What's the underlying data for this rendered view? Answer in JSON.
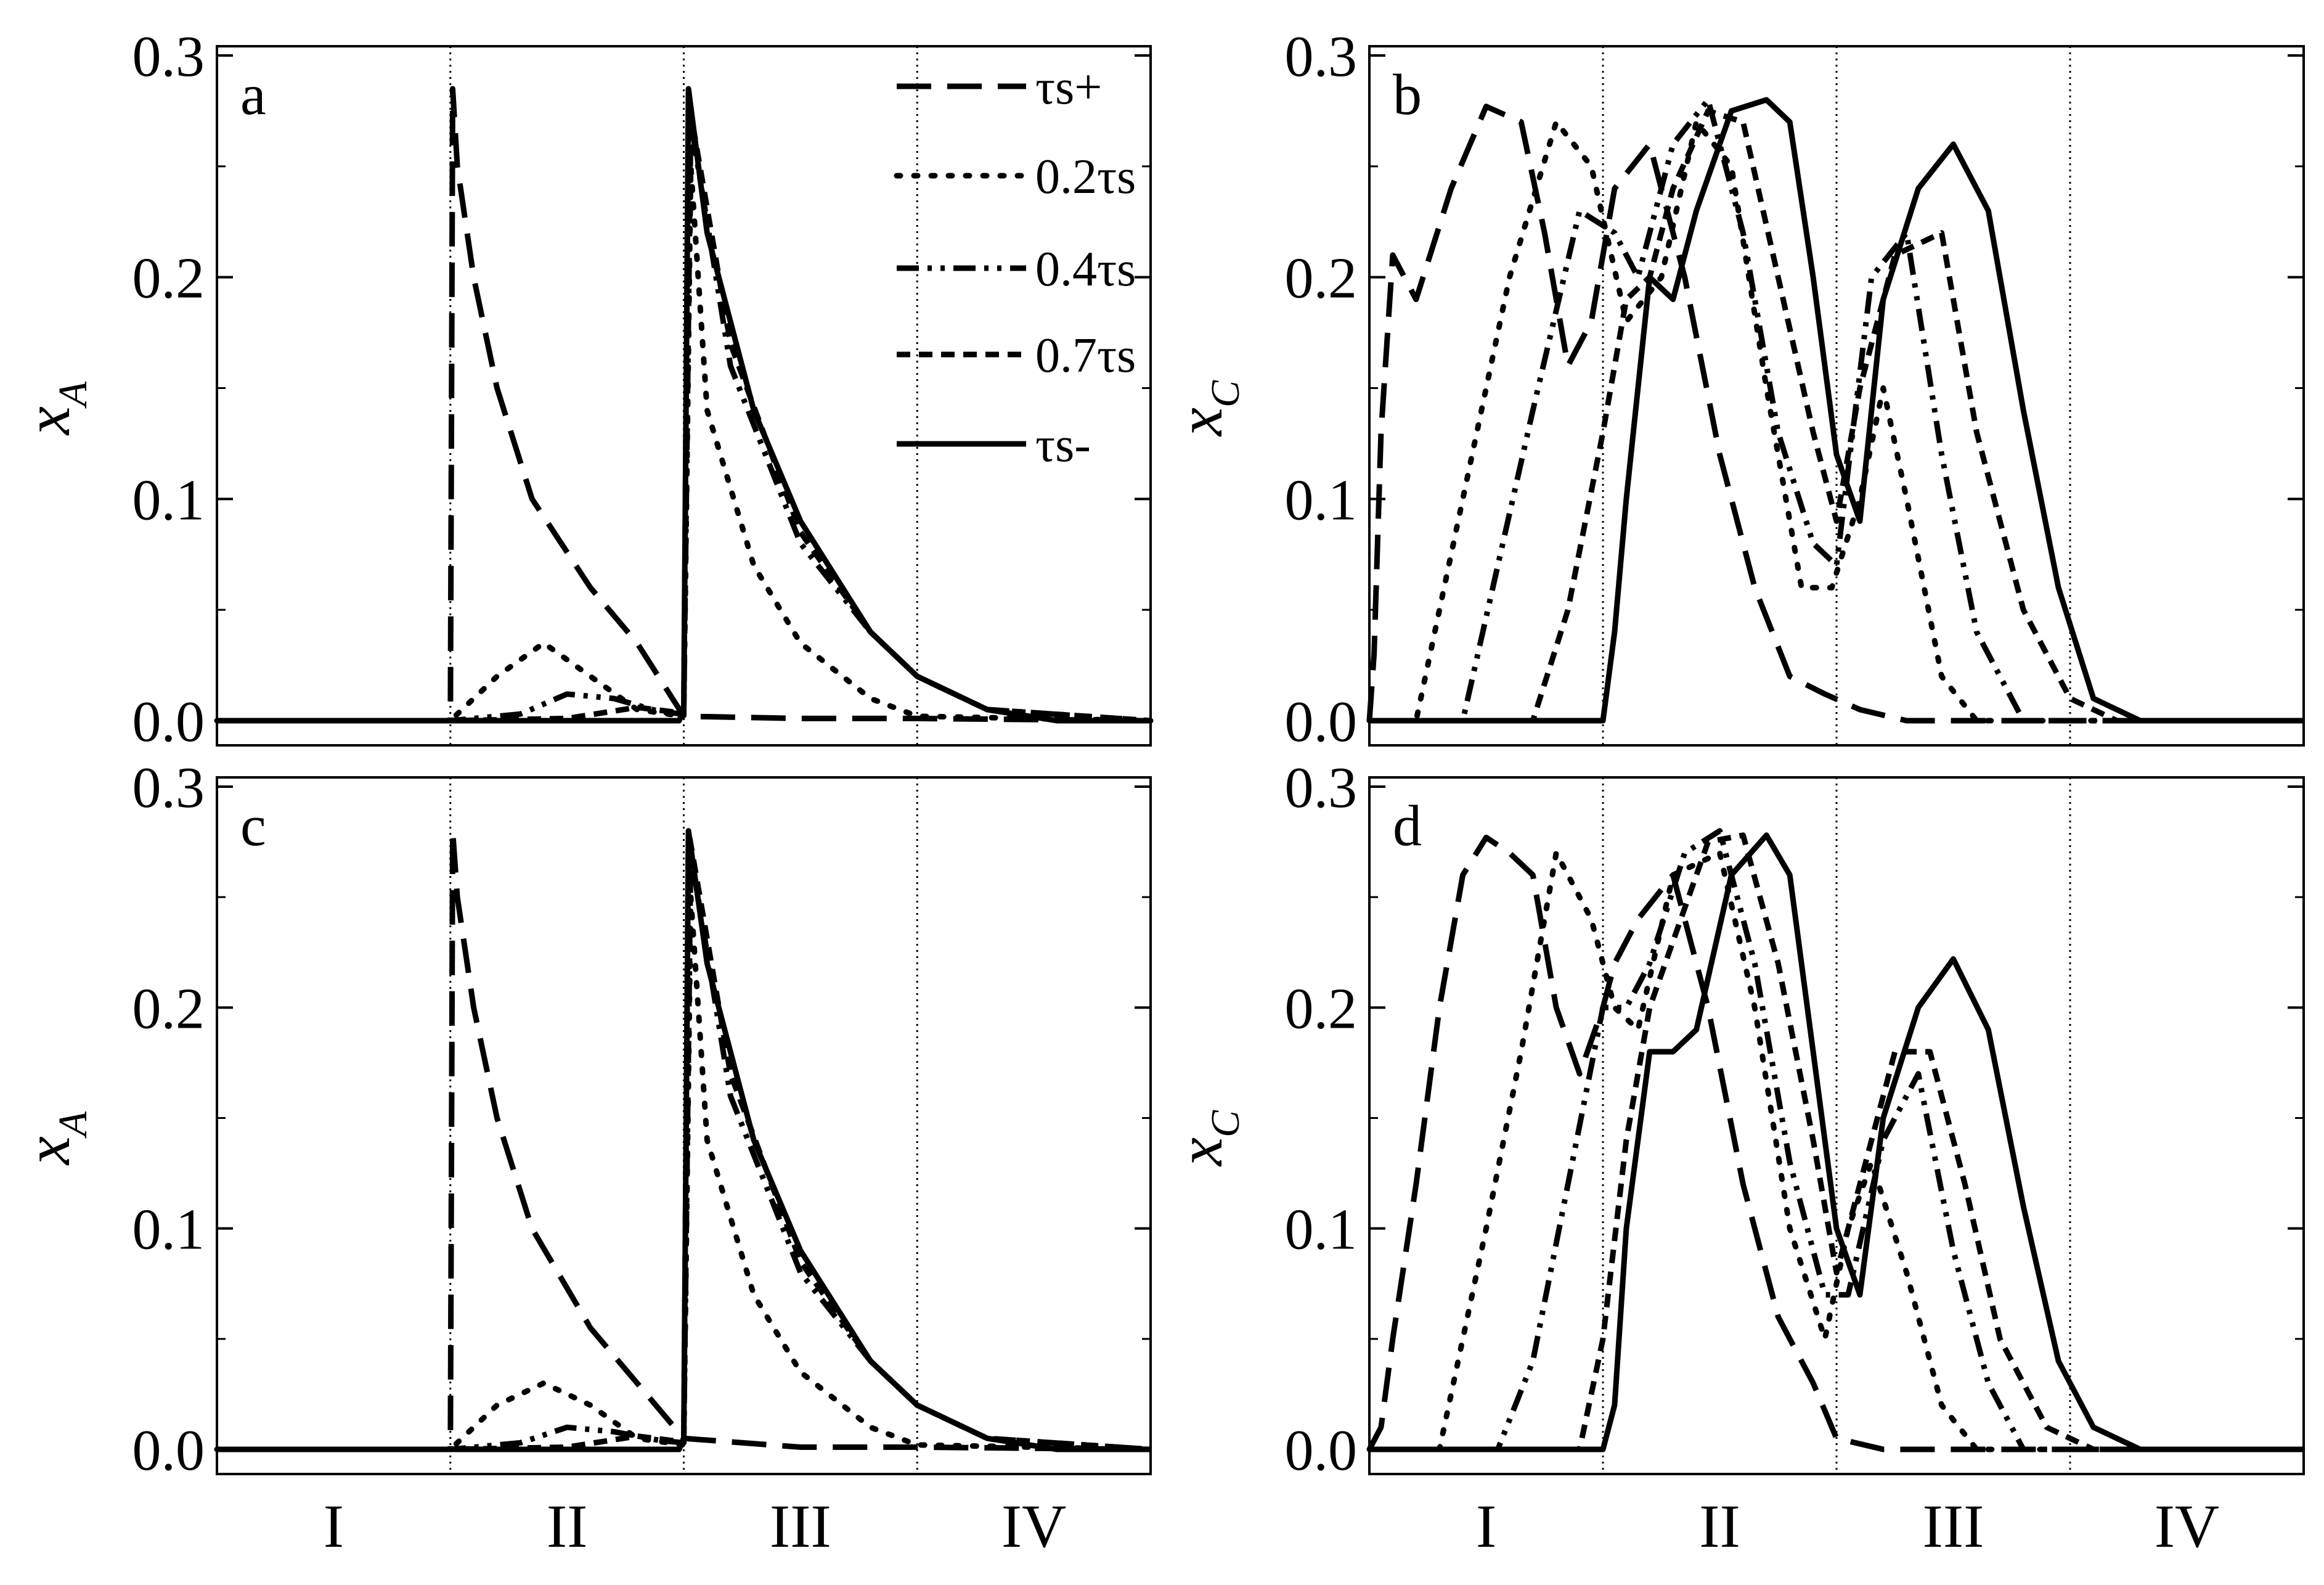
{
  "chart_data": [
    {
      "panel_label": "a",
      "type": "line",
      "ylabel": "x",
      "ylabel_sub": "A",
      "ylim": [
        0,
        0.3
      ],
      "yticks": [
        "0.0",
        "0.1",
        "0.2",
        "0.3"
      ],
      "regions": [
        "I",
        "II",
        "III",
        "IV"
      ],
      "grid": "vertical dotted region boundaries",
      "legend_position": "top-right",
      "series": [
        {
          "name": "τs+",
          "style": "long-dash",
          "x": [
            0,
            1.0,
            1.01,
            1.03,
            1.1,
            1.2,
            1.35,
            1.6,
            1.8,
            2.0,
            2.5,
            3.0,
            4.0
          ],
          "y": [
            0,
            0,
            0.285,
            0.25,
            0.2,
            0.15,
            0.1,
            0.06,
            0.035,
            0.002,
            0.001,
            0.001,
            0
          ]
        },
        {
          "name": "0.2τs",
          "style": "dotted",
          "x": [
            0,
            1.0,
            1.05,
            1.2,
            1.4,
            1.6,
            1.8,
            2.0,
            2.03,
            2.1,
            2.3,
            2.5,
            2.8,
            3.0,
            4.0
          ],
          "y": [
            0,
            0,
            0.005,
            0.02,
            0.035,
            0.02,
            0.005,
            0.002,
            0.25,
            0.14,
            0.07,
            0.035,
            0.01,
            0.002,
            0
          ]
        },
        {
          "name": "0.4τs",
          "style": "dash-dot-dot",
          "x": [
            0,
            1.0,
            1.3,
            1.5,
            1.7,
            1.9,
            2.0,
            2.03,
            2.2,
            2.5,
            2.8,
            3.0,
            3.3,
            4.0
          ],
          "y": [
            0,
            0,
            0.003,
            0.012,
            0.01,
            0.004,
            0.003,
            0.27,
            0.16,
            0.08,
            0.04,
            0.02,
            0.005,
            0
          ]
        },
        {
          "name": "0.7τs",
          "style": "short-dash",
          "x": [
            0,
            1.0,
            1.5,
            1.8,
            1.95,
            2.0,
            2.02,
            2.2,
            2.5,
            2.8,
            3.0,
            3.3,
            4.0
          ],
          "y": [
            0,
            0,
            0.001,
            0.006,
            0.004,
            0.003,
            0.28,
            0.17,
            0.085,
            0.04,
            0.02,
            0.005,
            0
          ]
        },
        {
          "name": "τs-",
          "style": "solid",
          "x": [
            0,
            1.98,
            2.0,
            2.02,
            2.1,
            2.3,
            2.5,
            2.8,
            3.0,
            3.3,
            3.6,
            4.0
          ],
          "y": [
            0,
            0,
            0.005,
            0.285,
            0.22,
            0.14,
            0.09,
            0.04,
            0.02,
            0.005,
            0,
            0
          ]
        }
      ]
    },
    {
      "panel_label": "b",
      "type": "line",
      "ylabel": "x",
      "ylabel_sub": "C",
      "ylim": [
        0,
        0.3
      ],
      "yticks": [
        "0.0",
        "0.1",
        "0.2",
        "0.3"
      ],
      "regions": [
        "I",
        "II",
        "III",
        "IV"
      ],
      "grid": "vertical dotted region boundaries",
      "series": [
        {
          "name": "τs+",
          "style": "long-dash",
          "x": [
            0,
            0.02,
            0.05,
            0.1,
            0.2,
            0.35,
            0.5,
            0.65,
            0.75,
            0.85,
            0.95,
            1.05,
            1.2,
            1.35,
            1.5,
            1.65,
            1.8,
            1.95,
            2.1,
            2.3,
            2.6,
            3.0,
            4.0
          ],
          "y": [
            0,
            0.03,
            0.13,
            0.21,
            0.19,
            0.24,
            0.277,
            0.27,
            0.22,
            0.16,
            0.18,
            0.24,
            0.26,
            0.2,
            0.12,
            0.06,
            0.02,
            0.012,
            0.005,
            0,
            0,
            0,
            0
          ]
        },
        {
          "name": "0.2τs",
          "style": "dotted",
          "x": [
            0,
            0.2,
            0.3,
            0.4,
            0.6,
            0.8,
            0.95,
            1.1,
            1.25,
            1.4,
            1.55,
            1.7,
            1.85,
            1.98,
            2.1,
            2.2,
            2.3,
            2.45,
            2.6,
            4.0
          ],
          "y": [
            0,
            0,
            0.05,
            0.1,
            0.2,
            0.27,
            0.25,
            0.18,
            0.2,
            0.27,
            0.25,
            0.15,
            0.06,
            0.06,
            0.1,
            0.15,
            0.1,
            0.02,
            0,
            0
          ]
        },
        {
          "name": "0.4τs",
          "style": "dash-dot-dot",
          "x": [
            0,
            0.4,
            0.55,
            0.7,
            0.9,
            1.05,
            1.15,
            1.3,
            1.45,
            1.6,
            1.75,
            1.9,
            2.0,
            2.15,
            2.3,
            2.45,
            2.6,
            2.8,
            4.0
          ],
          "y": [
            0,
            0,
            0.07,
            0.14,
            0.23,
            0.22,
            0.2,
            0.26,
            0.28,
            0.22,
            0.13,
            0.08,
            0.07,
            0.2,
            0.22,
            0.12,
            0.04,
            0,
            0
          ]
        },
        {
          "name": "0.7τs",
          "style": "short-dash",
          "x": [
            0,
            0.7,
            0.85,
            1.0,
            1.1,
            1.2,
            1.3,
            1.45,
            1.6,
            1.75,
            1.9,
            2.0,
            2.1,
            2.25,
            2.45,
            2.6,
            2.8,
            3.0,
            3.2,
            4.0
          ],
          "y": [
            0,
            0,
            0.05,
            0.13,
            0.19,
            0.2,
            0.24,
            0.275,
            0.27,
            0.2,
            0.13,
            0.09,
            0.15,
            0.21,
            0.22,
            0.13,
            0.05,
            0.01,
            0,
            0
          ]
        },
        {
          "name": "τs-",
          "style": "solid",
          "x": [
            0,
            1.0,
            1.05,
            1.1,
            1.2,
            1.3,
            1.4,
            1.55,
            1.7,
            1.8,
            1.9,
            2.0,
            2.1,
            2.2,
            2.35,
            2.5,
            2.65,
            2.8,
            2.95,
            3.1,
            3.3,
            4.0
          ],
          "y": [
            0,
            0,
            0.04,
            0.1,
            0.2,
            0.19,
            0.23,
            0.275,
            0.28,
            0.27,
            0.2,
            0.12,
            0.09,
            0.19,
            0.24,
            0.26,
            0.23,
            0.14,
            0.06,
            0.01,
            0,
            0
          ]
        }
      ]
    },
    {
      "panel_label": "c",
      "type": "line",
      "ylabel": "x",
      "ylabel_sub": "A",
      "ylim": [
        0,
        0.3
      ],
      "yticks": [
        "0.0",
        "0.1",
        "0.2",
        "0.3"
      ],
      "regions": [
        "I",
        "II",
        "III",
        "IV"
      ],
      "grid": "vertical dotted region boundaries",
      "series": [
        {
          "name": "τs+",
          "style": "long-dash",
          "x": [
            0,
            1.0,
            1.01,
            1.03,
            1.1,
            1.2,
            1.35,
            1.6,
            1.8,
            2.0,
            2.5,
            3.0,
            4.0
          ],
          "y": [
            0,
            0,
            0.28,
            0.25,
            0.2,
            0.15,
            0.1,
            0.055,
            0.03,
            0.005,
            0.001,
            0.001,
            0
          ]
        },
        {
          "name": "0.2τs",
          "style": "dotted",
          "x": [
            0,
            1.0,
            1.05,
            1.2,
            1.4,
            1.6,
            1.8,
            2.0,
            2.03,
            2.1,
            2.3,
            2.5,
            2.8,
            3.0,
            4.0
          ],
          "y": [
            0,
            0,
            0.005,
            0.02,
            0.03,
            0.02,
            0.005,
            0.002,
            0.25,
            0.14,
            0.07,
            0.035,
            0.01,
            0.002,
            0
          ]
        },
        {
          "name": "0.4τs",
          "style": "dash-dot-dot",
          "x": [
            0,
            1.0,
            1.3,
            1.5,
            1.7,
            1.9,
            2.0,
            2.03,
            2.2,
            2.5,
            2.8,
            3.0,
            3.3,
            4.0
          ],
          "y": [
            0,
            0,
            0.003,
            0.01,
            0.008,
            0.004,
            0.003,
            0.27,
            0.16,
            0.08,
            0.04,
            0.02,
            0.005,
            0
          ]
        },
        {
          "name": "0.7τs",
          "style": "short-dash",
          "x": [
            0,
            1.0,
            1.5,
            1.8,
            1.95,
            2.0,
            2.02,
            2.2,
            2.5,
            2.8,
            3.0,
            3.3,
            4.0
          ],
          "y": [
            0,
            0,
            0.001,
            0.006,
            0.004,
            0.003,
            0.28,
            0.17,
            0.085,
            0.04,
            0.02,
            0.005,
            0
          ]
        },
        {
          "name": "τs-",
          "style": "solid",
          "x": [
            0,
            1.98,
            2.0,
            2.02,
            2.1,
            2.3,
            2.5,
            2.8,
            3.0,
            3.3,
            3.6,
            4.0
          ],
          "y": [
            0,
            0,
            0.005,
            0.28,
            0.22,
            0.14,
            0.09,
            0.04,
            0.02,
            0.005,
            0,
            0
          ]
        }
      ]
    },
    {
      "panel_label": "d",
      "type": "line",
      "ylabel": "x",
      "ylabel_sub": "C",
      "ylim": [
        0,
        0.3
      ],
      "yticks": [
        "0.0",
        "0.1",
        "0.2",
        "0.3"
      ],
      "regions": [
        "I",
        "II",
        "III",
        "IV"
      ],
      "grid": "vertical dotted region boundaries",
      "series": [
        {
          "name": "τs+",
          "style": "long-dash",
          "x": [
            0,
            0.05,
            0.1,
            0.2,
            0.3,
            0.4,
            0.5,
            0.6,
            0.7,
            0.8,
            0.9,
            1.0,
            1.05,
            1.15,
            1.3,
            1.45,
            1.6,
            1.75,
            1.9,
            2.0,
            2.2,
            4.0
          ],
          "y": [
            0,
            0.01,
            0.05,
            0.12,
            0.2,
            0.26,
            0.277,
            0.27,
            0.26,
            0.2,
            0.17,
            0.2,
            0.22,
            0.24,
            0.26,
            0.2,
            0.12,
            0.06,
            0.03,
            0.005,
            0,
            0
          ]
        },
        {
          "name": "0.2τs",
          "style": "dotted",
          "x": [
            0,
            0.3,
            0.4,
            0.5,
            0.65,
            0.8,
            0.95,
            1.05,
            1.15,
            1.3,
            1.5,
            1.65,
            1.8,
            1.95,
            2.05,
            2.15,
            2.3,
            2.45,
            2.6,
            4.0
          ],
          "y": [
            0,
            0,
            0.05,
            0.1,
            0.18,
            0.27,
            0.24,
            0.2,
            0.19,
            0.26,
            0.27,
            0.2,
            0.1,
            0.05,
            0.1,
            0.13,
            0.08,
            0.02,
            0,
            0
          ]
        },
        {
          "name": "0.4τs",
          "style": "dash-dot-dot",
          "x": [
            0,
            0.55,
            0.7,
            0.85,
            1.0,
            1.1,
            1.2,
            1.35,
            1.5,
            1.65,
            1.8,
            1.95,
            2.05,
            2.2,
            2.35,
            2.5,
            2.65,
            2.8,
            4.0
          ],
          "y": [
            0,
            0,
            0.04,
            0.12,
            0.2,
            0.2,
            0.22,
            0.27,
            0.28,
            0.22,
            0.13,
            0.07,
            0.07,
            0.14,
            0.17,
            0.09,
            0.03,
            0,
            0
          ]
        },
        {
          "name": "0.7τs",
          "style": "short-dash",
          "x": [
            0,
            0.9,
            1.0,
            1.1,
            1.2,
            1.3,
            1.45,
            1.6,
            1.75,
            1.9,
            2.0,
            2.1,
            2.25,
            2.4,
            2.55,
            2.7,
            2.9,
            3.1,
            4.0
          ],
          "y": [
            0,
            0,
            0.05,
            0.14,
            0.2,
            0.23,
            0.275,
            0.278,
            0.22,
            0.14,
            0.08,
            0.12,
            0.18,
            0.18,
            0.12,
            0.05,
            0.01,
            0,
            0
          ]
        },
        {
          "name": "τs-",
          "style": "solid",
          "x": [
            0,
            1.0,
            1.05,
            1.1,
            1.2,
            1.3,
            1.4,
            1.55,
            1.7,
            1.8,
            1.9,
            2.0,
            2.1,
            2.2,
            2.35,
            2.5,
            2.65,
            2.8,
            2.95,
            3.1,
            3.3,
            4.0
          ],
          "y": [
            0,
            0,
            0.02,
            0.1,
            0.18,
            0.18,
            0.19,
            0.26,
            0.278,
            0.26,
            0.18,
            0.1,
            0.07,
            0.15,
            0.2,
            0.222,
            0.19,
            0.11,
            0.04,
            0.01,
            0,
            0
          ]
        }
      ]
    }
  ]
}
